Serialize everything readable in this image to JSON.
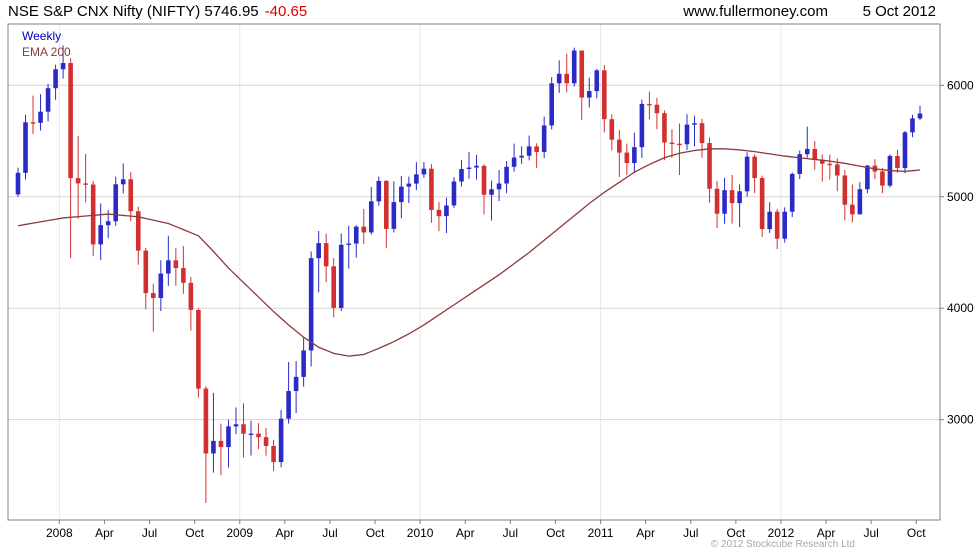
{
  "header": {
    "title": "NSE S&P CNX Nifty (NIFTY) 5746.95",
    "change": "-40.65",
    "site": "www.fullermoney.com",
    "date": "5 Oct 2012"
  },
  "legend": {
    "timeframe": "Weekly",
    "overlay": "EMA 200"
  },
  "footer": {
    "copyright": "© 2012 Stockcube Research Ltd"
  },
  "chart_data": {
    "type": "candlestick",
    "title": "NSE S&P CNX Nifty (NIFTY)",
    "timeframe": "Weekly",
    "overlay": "EMA 200",
    "last_close": 5746.95,
    "change": -40.65,
    "grid": true,
    "legend_position": "top-left",
    "ylim": [
      2100,
      6550
    ],
    "y_ticks": [
      3000,
      4000,
      5000,
      6000
    ],
    "x_ticks": [
      {
        "label": "2008",
        "m": 3
      },
      {
        "label": "Apr",
        "m": 6
      },
      {
        "label": "Jul",
        "m": 9
      },
      {
        "label": "Oct",
        "m": 12
      },
      {
        "label": "2009",
        "m": 15
      },
      {
        "label": "Apr",
        "m": 18
      },
      {
        "label": "Jul",
        "m": 21
      },
      {
        "label": "Oct",
        "m": 24
      },
      {
        "label": "2010",
        "m": 27
      },
      {
        "label": "Apr",
        "m": 30
      },
      {
        "label": "Jul",
        "m": 33
      },
      {
        "label": "Oct",
        "m": 36
      },
      {
        "label": "2011",
        "m": 39
      },
      {
        "label": "Apr",
        "m": 42
      },
      {
        "label": "Jul",
        "m": 45
      },
      {
        "label": "Oct",
        "m": 48
      },
      {
        "label": "2012",
        "m": 51
      },
      {
        "label": "Apr",
        "m": 54
      },
      {
        "label": "Jul",
        "m": 57
      },
      {
        "label": "Oct",
        "m": 60
      }
    ],
    "candles": [
      [
        5021,
        5261,
        4999,
        5215
      ],
      [
        5215,
        5736,
        5155,
        5668
      ],
      [
        5668,
        5907,
        5563,
        5663
      ],
      [
        5663,
        5920,
        5594,
        5763
      ],
      [
        5763,
        6012,
        5676,
        5974
      ],
      [
        5974,
        6185,
        5870,
        6144
      ],
      [
        6144,
        6357,
        6060,
        6200
      ],
      [
        6200,
        6243,
        4448,
        5167
      ],
      [
        5167,
        5545,
        4803,
        5120
      ],
      [
        5120,
        5385,
        4950,
        5110
      ],
      [
        5110,
        5140,
        4468,
        4573
      ],
      [
        4573,
        4940,
        4431,
        4745
      ],
      [
        4745,
        4880,
        4628,
        4780
      ],
      [
        4780,
        5180,
        4740,
        5112
      ],
      [
        5112,
        5299,
        5030,
        5157
      ],
      [
        5157,
        5220,
        4780,
        4870
      ],
      [
        4870,
        4910,
        4390,
        4517
      ],
      [
        4517,
        4540,
        3990,
        4136
      ],
      [
        4136,
        4220,
        3790,
        4092
      ],
      [
        4092,
        4430,
        3975,
        4311
      ],
      [
        4311,
        4650,
        4200,
        4430
      ],
      [
        4430,
        4540,
        4202,
        4360
      ],
      [
        4360,
        4558,
        4130,
        4228
      ],
      [
        4228,
        4280,
        3800,
        3985
      ],
      [
        3985,
        4000,
        3198,
        3279
      ],
      [
        3279,
        3300,
        2252,
        2697
      ],
      [
        2697,
        3240,
        2525,
        2810
      ],
      [
        2810,
        2965,
        2502,
        2755
      ],
      [
        2755,
        3000,
        2570,
        2940
      ],
      [
        2940,
        3110,
        2870,
        2959
      ],
      [
        2959,
        3147,
        2661,
        2874
      ],
      [
        2874,
        2990,
        2678,
        2875
      ],
      [
        2875,
        2969,
        2736,
        2843
      ],
      [
        2843,
        2925,
        2677,
        2764
      ],
      [
        2764,
        2820,
        2539,
        2620
      ],
      [
        2620,
        3087,
        2573,
        3009
      ],
      [
        3009,
        3517,
        2965,
        3257
      ],
      [
        3257,
        3525,
        3060,
        3384
      ],
      [
        3384,
        3740,
        3297,
        3621
      ],
      [
        3621,
        4509,
        3478,
        4449
      ],
      [
        4449,
        4693,
        4143,
        4584
      ],
      [
        4584,
        4670,
        4235,
        4376
      ],
      [
        4376,
        4450,
        3919,
        4003
      ],
      [
        4003,
        4670,
        3974,
        4569
      ],
      [
        4569,
        4740,
        4355,
        4580
      ],
      [
        4580,
        4745,
        4454,
        4732
      ],
      [
        4732,
        4890,
        4576,
        4680
      ],
      [
        4680,
        5088,
        4660,
        4959
      ],
      [
        4959,
        5182,
        4920,
        5142
      ],
      [
        5142,
        5150,
        4538,
        4712
      ],
      [
        4712,
        5138,
        4679,
        4952
      ],
      [
        4952,
        5186,
        4806,
        5091
      ],
      [
        5091,
        5182,
        4944,
        5118
      ],
      [
        5118,
        5310,
        5060,
        5201
      ],
      [
        5201,
        5311,
        5170,
        5252
      ],
      [
        5252,
        5293,
        4766,
        4882
      ],
      [
        4882,
        4952,
        4692,
        4826
      ],
      [
        4826,
        4992,
        4675,
        4922
      ],
      [
        4922,
        5176,
        4900,
        5137
      ],
      [
        5137,
        5329,
        5091,
        5249
      ],
      [
        5249,
        5400,
        5160,
        5262
      ],
      [
        5262,
        5376,
        5154,
        5278
      ],
      [
        5278,
        5290,
        4842,
        5018
      ],
      [
        5018,
        5145,
        4786,
        5067
      ],
      [
        5067,
        5240,
        4961,
        5119
      ],
      [
        5119,
        5320,
        5033,
        5269
      ],
      [
        5269,
        5477,
        5225,
        5352
      ],
      [
        5352,
        5453,
        5296,
        5368
      ],
      [
        5368,
        5549,
        5327,
        5452
      ],
      [
        5452,
        5480,
        5259,
        5402
      ],
      [
        5402,
        5719,
        5348,
        5640
      ],
      [
        5640,
        6073,
        5604,
        6018
      ],
      [
        6018,
        6224,
        5932,
        6103
      ],
      [
        6103,
        6284,
        5937,
        6018
      ],
      [
        6018,
        6338,
        5990,
        6312
      ],
      [
        6312,
        6312,
        5690,
        5890
      ],
      [
        5890,
        6069,
        5800,
        5948
      ],
      [
        5948,
        6147,
        5883,
        6134
      ],
      [
        6134,
        6181,
        5578,
        5696
      ],
      [
        5696,
        5740,
        5416,
        5512
      ],
      [
        5512,
        5599,
        5178,
        5396
      ],
      [
        5396,
        5477,
        5196,
        5303
      ],
      [
        5303,
        5575,
        5222,
        5445
      ],
      [
        5445,
        5872,
        5348,
        5833
      ],
      [
        5833,
        5944,
        5693,
        5826
      ],
      [
        5826,
        5888,
        5607,
        5750
      ],
      [
        5750,
        5775,
        5328,
        5486
      ],
      [
        5486,
        5605,
        5349,
        5476
      ],
      [
        5476,
        5657,
        5195,
        5471
      ],
      [
        5471,
        5740,
        5420,
        5647
      ],
      [
        5647,
        5728,
        5453,
        5660
      ],
      [
        5660,
        5700,
        5350,
        5482
      ],
      [
        5482,
        5532,
        4946,
        5072
      ],
      [
        5072,
        5140,
        4720,
        4848
      ],
      [
        4848,
        5169,
        4758,
        5059
      ],
      [
        5059,
        5196,
        4759,
        4943
      ],
      [
        4943,
        5112,
        4728,
        5049
      ],
      [
        5049,
        5400,
        5001,
        5360
      ],
      [
        5360,
        5381,
        5033,
        5168
      ],
      [
        5168,
        5190,
        4640,
        4710
      ],
      [
        4710,
        4950,
        4675,
        4866
      ],
      [
        4866,
        4890,
        4531,
        4624
      ],
      [
        4624,
        4905,
        4588,
        4866
      ],
      [
        4866,
        5217,
        4818,
        5205
      ],
      [
        5205,
        5415,
        5159,
        5382
      ],
      [
        5382,
        5630,
        5350,
        5429
      ],
      [
        5429,
        5499,
        5242,
        5334
      ],
      [
        5334,
        5379,
        5136,
        5296
      ],
      [
        5296,
        5378,
        5154,
        5290
      ],
      [
        5290,
        5344,
        5049,
        5191
      ],
      [
        5191,
        5240,
        4788,
        4929
      ],
      [
        4929,
        5110,
        4770,
        4842
      ],
      [
        4842,
        5130,
        4841,
        5068
      ],
      [
        5068,
        5286,
        5032,
        5279
      ],
      [
        5279,
        5338,
        5160,
        5227
      ],
      [
        5227,
        5260,
        5033,
        5100
      ],
      [
        5100,
        5380,
        5083,
        5366
      ],
      [
        5366,
        5421,
        5216,
        5258
      ],
      [
        5258,
        5590,
        5211,
        5578
      ],
      [
        5578,
        5735,
        5534,
        5703
      ],
      [
        5703,
        5815,
        5688,
        5747
      ]
    ],
    "ema200_anchors": [
      [
        0,
        4740
      ],
      [
        6,
        4810
      ],
      [
        12,
        4845
      ],
      [
        16,
        4820
      ],
      [
        20,
        4760
      ],
      [
        24,
        4650
      ],
      [
        26,
        4510
      ],
      [
        28,
        4360
      ],
      [
        30,
        4230
      ],
      [
        32,
        4100
      ],
      [
        34,
        3970
      ],
      [
        36,
        3850
      ],
      [
        38,
        3740
      ],
      [
        40,
        3650
      ],
      [
        42,
        3595
      ],
      [
        44,
        3570
      ],
      [
        46,
        3585
      ],
      [
        48,
        3640
      ],
      [
        50,
        3700
      ],
      [
        52,
        3770
      ],
      [
        54,
        3850
      ],
      [
        56,
        3940
      ],
      [
        58,
        4030
      ],
      [
        60,
        4120
      ],
      [
        62,
        4210
      ],
      [
        64,
        4300
      ],
      [
        66,
        4400
      ],
      [
        68,
        4500
      ],
      [
        70,
        4610
      ],
      [
        72,
        4720
      ],
      [
        74,
        4830
      ],
      [
        76,
        4940
      ],
      [
        78,
        5040
      ],
      [
        80,
        5130
      ],
      [
        82,
        5220
      ],
      [
        84,
        5290
      ],
      [
        86,
        5350
      ],
      [
        88,
        5390
      ],
      [
        90,
        5415
      ],
      [
        92,
        5430
      ],
      [
        94,
        5430
      ],
      [
        96,
        5420
      ],
      [
        98,
        5405
      ],
      [
        100,
        5385
      ],
      [
        102,
        5365
      ],
      [
        104,
        5350
      ],
      [
        106,
        5335
      ],
      [
        108,
        5320
      ],
      [
        110,
        5300
      ],
      [
        112,
        5275
      ],
      [
        114,
        5250
      ],
      [
        116,
        5235
      ],
      [
        118,
        5228
      ],
      [
        120,
        5240
      ]
    ],
    "colors": {
      "up": "#2a2ac8",
      "down": "#d23030",
      "ema": "#8b3a3a",
      "grid": "#d6d6d6",
      "year_grid": "#e8e8e8",
      "axis": "#808080",
      "timeframe_label": "#0000bb",
      "change_negative": "#dd0000",
      "text": "#000000"
    }
  }
}
